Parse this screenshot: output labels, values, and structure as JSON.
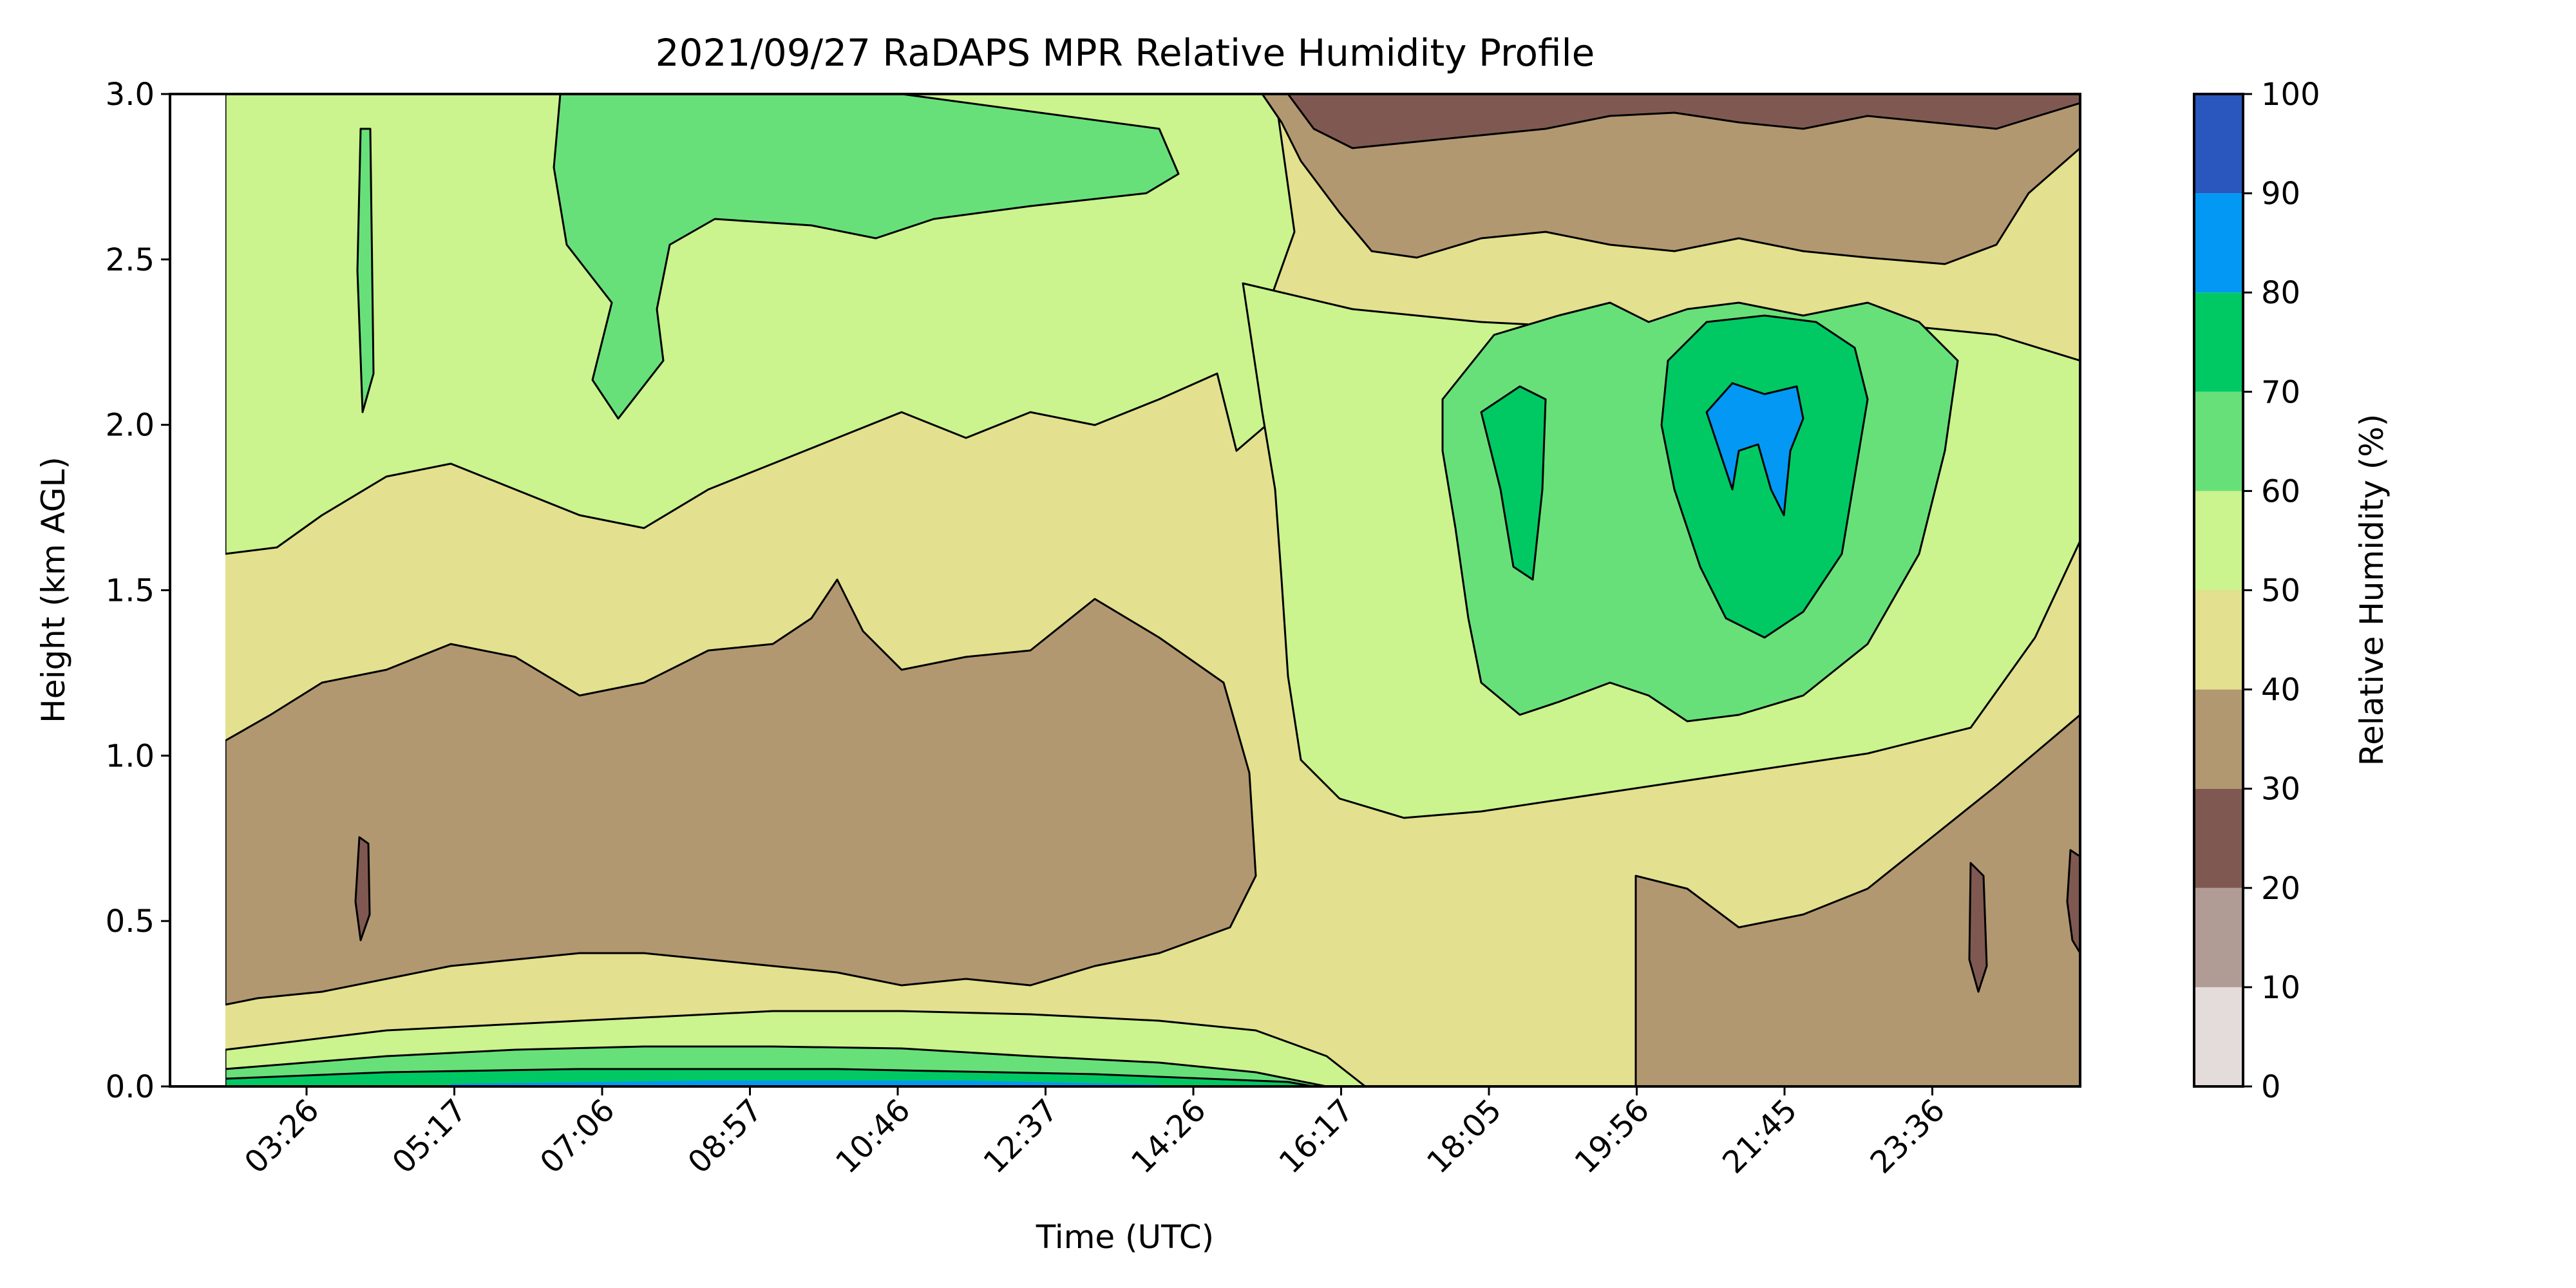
{
  "chart_data": {
    "type": "heatmap",
    "title": "2021/09/27 RaDAPS MPR Relative Humidity Profile",
    "xlabel": "Time (UTC)",
    "ylabel": "Height (km AGL)",
    "x_ticks": [
      "03:26",
      "05:17",
      "07:06",
      "08:57",
      "10:46",
      "12:37",
      "14:26",
      "16:17",
      "18:05",
      "19:56",
      "21:45",
      "23:36"
    ],
    "y_ticks": [
      "0.0",
      "0.5",
      "1.0",
      "1.5",
      "2.0",
      "2.5",
      "3.0"
    ],
    "ylim": [
      0,
      3
    ],
    "colorbar": {
      "label": "Relative Humidity (%)",
      "ticks": [
        "0",
        "10",
        "20",
        "30",
        "40",
        "50",
        "60",
        "70",
        "80",
        "90",
        "100"
      ],
      "bins": [
        {
          "from": 0,
          "to": 10,
          "color": "#e4dcdb"
        },
        {
          "from": 10,
          "to": 20,
          "color": "#b19c95"
        },
        {
          "from": 20,
          "to": 30,
          "color": "#7f5951"
        },
        {
          "from": 30,
          "to": 40,
          "color": "#b29870"
        },
        {
          "from": 40,
          "to": 50,
          "color": "#e3e08f"
        },
        {
          "from": 50,
          "to": 60,
          "color": "#cbf38e"
        },
        {
          "from": 60,
          "to": 70,
          "color": "#68e07a"
        },
        {
          "from": 70,
          "to": 80,
          "color": "#00c964"
        },
        {
          "from": 80,
          "to": 90,
          "color": "#0398f4"
        },
        {
          "from": 90,
          "to": 100,
          "color": "#2a57be"
        }
      ]
    },
    "series": [
      {
        "rh_bin": "30-40",
        "times": [
          "03:26",
          "05:17",
          "07:06",
          "08:57",
          "10:46",
          "12:37",
          "14:26"
        ],
        "height_range_km": [
          0.3,
          1.2
        ]
      },
      {
        "rh_bin": "50-60",
        "times": [
          "03:26",
          "05:17",
          "07:06",
          "08:57",
          "10:46",
          "12:37",
          "14:26",
          "16:17"
        ],
        "height_range_km": [
          1.7,
          3.0
        ]
      },
      {
        "rh_bin": "60-70",
        "times": [
          "07:06",
          "08:57",
          "10:46",
          "12:37"
        ],
        "height_range_km": [
          2.6,
          3.0
        ]
      },
      {
        "rh_bin": "20-30",
        "times": [
          "18:05",
          "19:56",
          "21:45",
          "23:36"
        ],
        "height_range_km": [
          2.8,
          3.0
        ]
      },
      {
        "rh_bin": "30-40",
        "times": [
          "17:00",
          "18:05",
          "19:56",
          "21:45",
          "23:36"
        ],
        "height_range_km": [
          2.5,
          2.9
        ]
      },
      {
        "rh_bin": "60-70",
        "times": [
          "18:05",
          "19:56",
          "21:45",
          "23:36"
        ],
        "height_range_km": [
          1.1,
          2.3
        ]
      },
      {
        "rh_bin": "70-80",
        "times": [
          "19:56",
          "21:45"
        ],
        "height_range_km": [
          1.4,
          2.3
        ]
      },
      {
        "rh_bin": "80-90",
        "times": [
          "21:45"
        ],
        "height_range_km": [
          1.8,
          2.1
        ]
      },
      {
        "rh_bin": "30-40",
        "times": [
          "19:56",
          "21:45",
          "23:36"
        ],
        "height_range_km": [
          0.0,
          1.0
        ]
      },
      {
        "rh_bin": "60-80",
        "times": [
          "03:26",
          "05:17",
          "07:06",
          "08:57",
          "10:46",
          "12:37",
          "14:26"
        ],
        "height_range_km": [
          0.0,
          0.1
        ]
      }
    ]
  }
}
